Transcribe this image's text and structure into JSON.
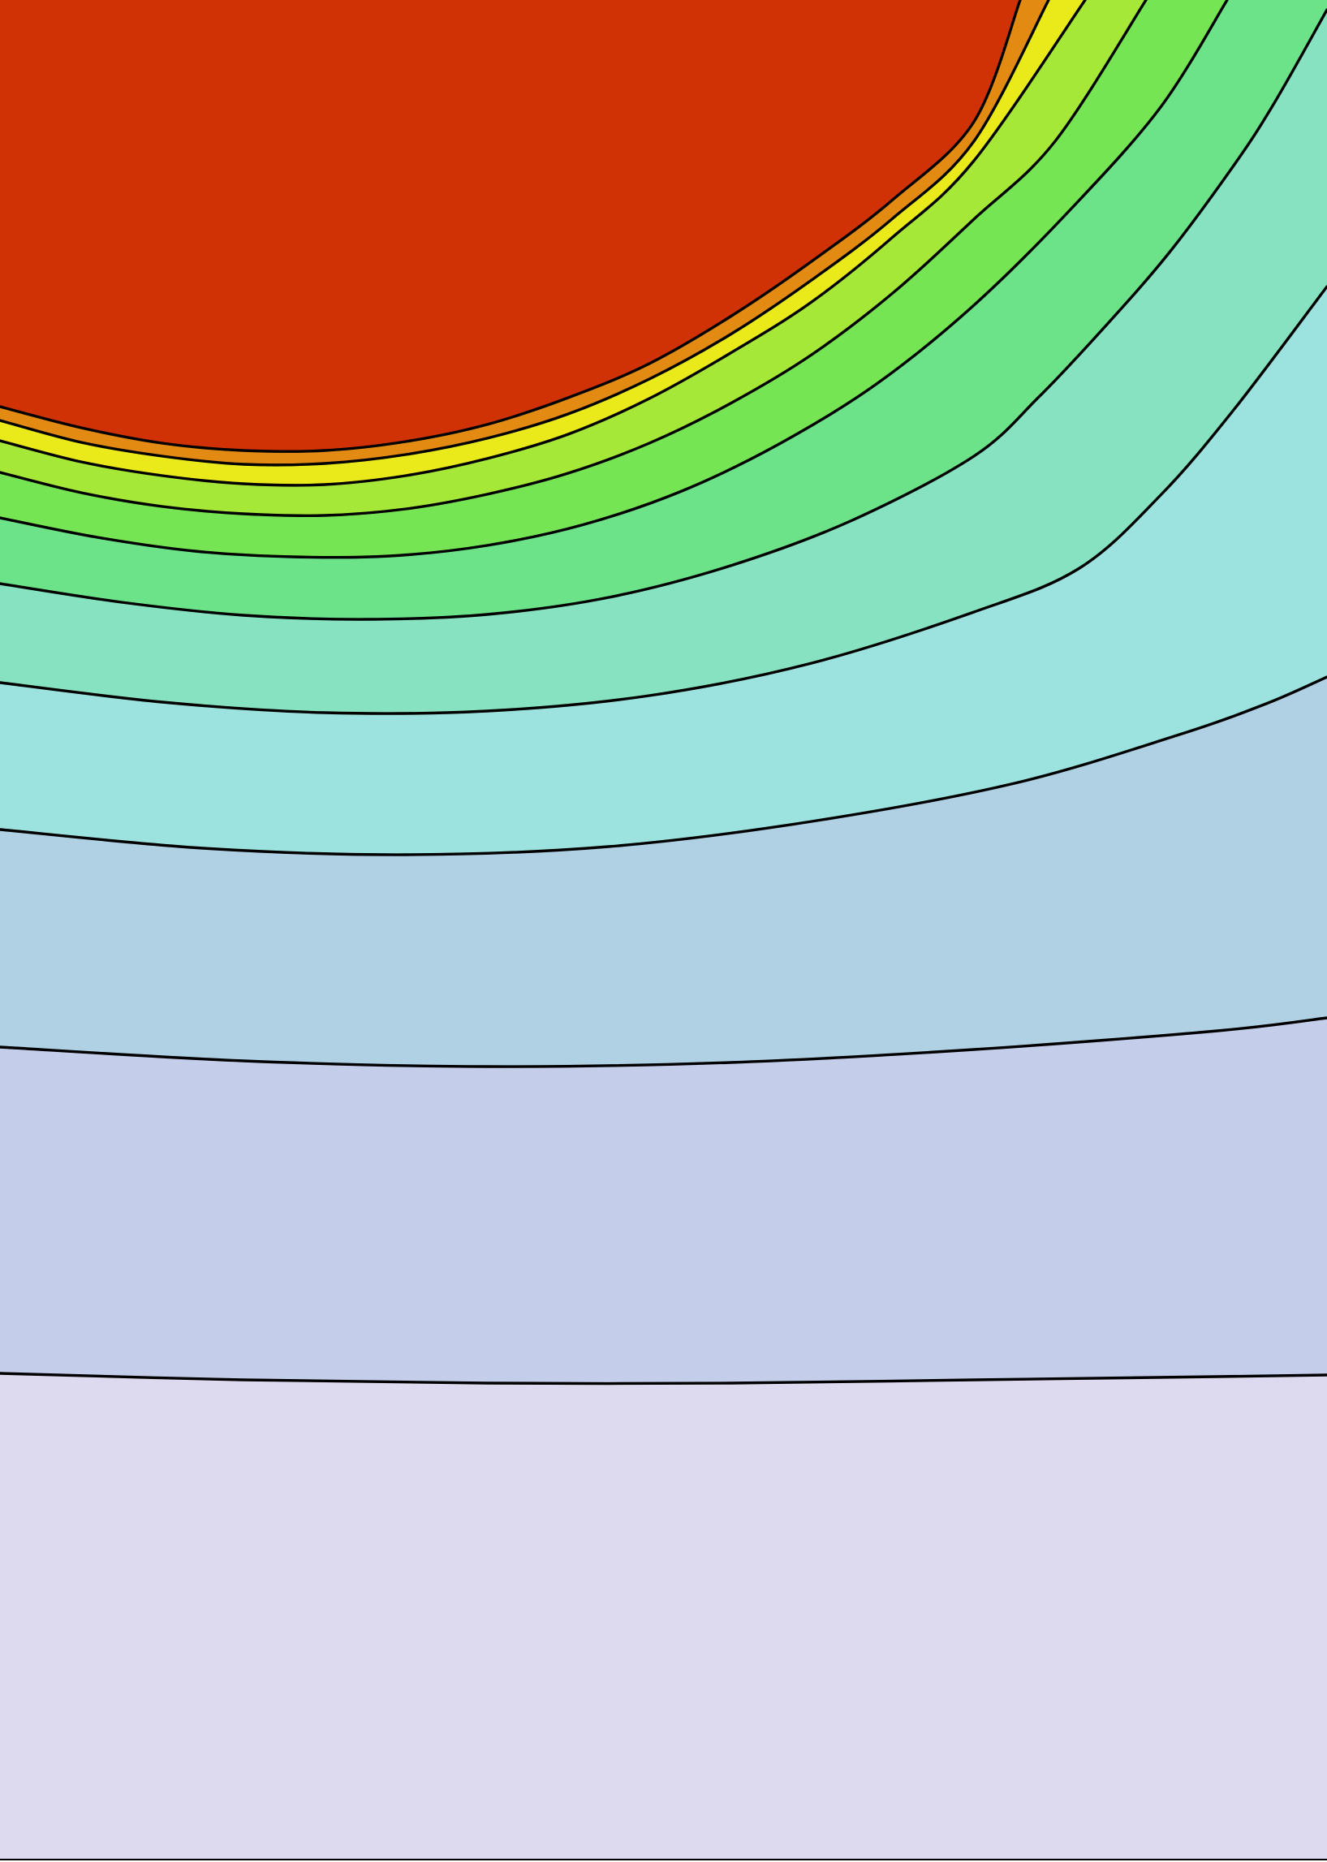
{
  "chart_data": {
    "type": "contour",
    "title": "",
    "xlabel": "",
    "ylabel": "",
    "grid": false,
    "legend": "none",
    "levels": [
      0,
      1,
      2,
      3,
      4,
      5,
      6,
      7,
      8,
      9,
      10
    ],
    "band_colors": [
      "#ddd9ef",
      "#c4cdea",
      "#b0d0e3",
      "#9ce3df",
      "#86e2c0",
      "#6ce388",
      "#76e553",
      "#a5e838",
      "#eaea1a",
      "#e28a12",
      "#d03205"
    ],
    "contour_lines": [
      {
        "level": 1,
        "points": [
          [
            0,
            1692
          ],
          [
            300,
            1700
          ],
          [
            600,
            1704
          ],
          [
            900,
            1704
          ],
          [
            1200,
            1700
          ],
          [
            1500,
            1696
          ],
          [
            1635,
            1694
          ]
        ]
      },
      {
        "level": 2,
        "points": [
          [
            0,
            1290
          ],
          [
            300,
            1307
          ],
          [
            600,
            1314
          ],
          [
            900,
            1309
          ],
          [
            1200,
            1293
          ],
          [
            1500,
            1270
          ],
          [
            1635,
            1254
          ]
        ]
      },
      {
        "level": 3,
        "points": [
          [
            0,
            1022
          ],
          [
            250,
            1045
          ],
          [
            500,
            1053
          ],
          [
            750,
            1043
          ],
          [
            1000,
            1012
          ],
          [
            1250,
            965
          ],
          [
            1450,
            906
          ],
          [
            1560,
            867
          ],
          [
            1635,
            834
          ]
        ]
      },
      {
        "level": 4,
        "points": [
          [
            0,
            841
          ],
          [
            200,
            865
          ],
          [
            400,
            878
          ],
          [
            600,
            876
          ],
          [
            800,
            857
          ],
          [
            1000,
            817
          ],
          [
            1200,
            754
          ],
          [
            1330,
            700
          ],
          [
            1430,
            610
          ],
          [
            1520,
            505
          ],
          [
            1635,
            353
          ]
        ]
      },
      {
        "level": 5,
        "points": [
          [
            0,
            719
          ],
          [
            150,
            742
          ],
          [
            300,
            758
          ],
          [
            450,
            763
          ],
          [
            600,
            757
          ],
          [
            750,
            736
          ],
          [
            900,
            697
          ],
          [
            1050,
            641
          ],
          [
            1200,
            562
          ],
          [
            1280,
            489
          ],
          [
            1360,
            404
          ],
          [
            1440,
            312
          ],
          [
            1520,
            204
          ],
          [
            1570,
            127
          ],
          [
            1635,
            12
          ]
        ]
      },
      {
        "level": 6,
        "points": [
          [
            0,
            638
          ],
          [
            120,
            662
          ],
          [
            240,
            679
          ],
          [
            360,
            686
          ],
          [
            480,
            685
          ],
          [
            600,
            672
          ],
          [
            720,
            646
          ],
          [
            840,
            605
          ],
          [
            960,
            547
          ],
          [
            1080,
            473
          ],
          [
            1200,
            376
          ],
          [
            1320,
            257
          ],
          [
            1430,
            132
          ],
          [
            1512,
            0
          ]
        ]
      },
      {
        "level": 7,
        "points": [
          [
            0,
            582
          ],
          [
            100,
            607
          ],
          [
            200,
            624
          ],
          [
            300,
            633
          ],
          [
            400,
            635
          ],
          [
            500,
            627
          ],
          [
            600,
            609
          ],
          [
            700,
            583
          ],
          [
            800,
            546
          ],
          [
            900,
            497
          ],
          [
            1000,
            437
          ],
          [
            1100,
            361
          ],
          [
            1200,
            270
          ],
          [
            1300,
            174
          ],
          [
            1412,
            0
          ]
        ]
      },
      {
        "level": 8,
        "points": [
          [
            0,
            543
          ],
          [
            100,
            569
          ],
          [
            200,
            586
          ],
          [
            300,
            596
          ],
          [
            400,
            597
          ],
          [
            500,
            586
          ],
          [
            600,
            565
          ],
          [
            700,
            535
          ],
          [
            800,
            491
          ],
          [
            900,
            435
          ],
          [
            1000,
            372
          ],
          [
            1100,
            292
          ],
          [
            1200,
            198
          ],
          [
            1337,
            0
          ]
        ]
      },
      {
        "level": 9,
        "points": [
          [
            0,
            518
          ],
          [
            100,
            545
          ],
          [
            200,
            562
          ],
          [
            300,
            572
          ],
          [
            400,
            571
          ],
          [
            500,
            560
          ],
          [
            600,
            540
          ],
          [
            700,
            510
          ],
          [
            800,
            467
          ],
          [
            900,
            412
          ],
          [
            1000,
            345
          ],
          [
            1100,
            269
          ],
          [
            1200,
            174
          ],
          [
            1292,
            0
          ]
        ]
      },
      {
        "level": 10,
        "points": [
          [
            0,
            501
          ],
          [
            100,
            527
          ],
          [
            200,
            546
          ],
          [
            300,
            555
          ],
          [
            400,
            555
          ],
          [
            500,
            544
          ],
          [
            600,
            523
          ],
          [
            700,
            490
          ],
          [
            800,
            448
          ],
          [
            900,
            390
          ],
          [
            1000,
            322
          ],
          [
            1100,
            246
          ],
          [
            1200,
            150
          ],
          [
            1257,
            0
          ]
        ]
      }
    ]
  }
}
